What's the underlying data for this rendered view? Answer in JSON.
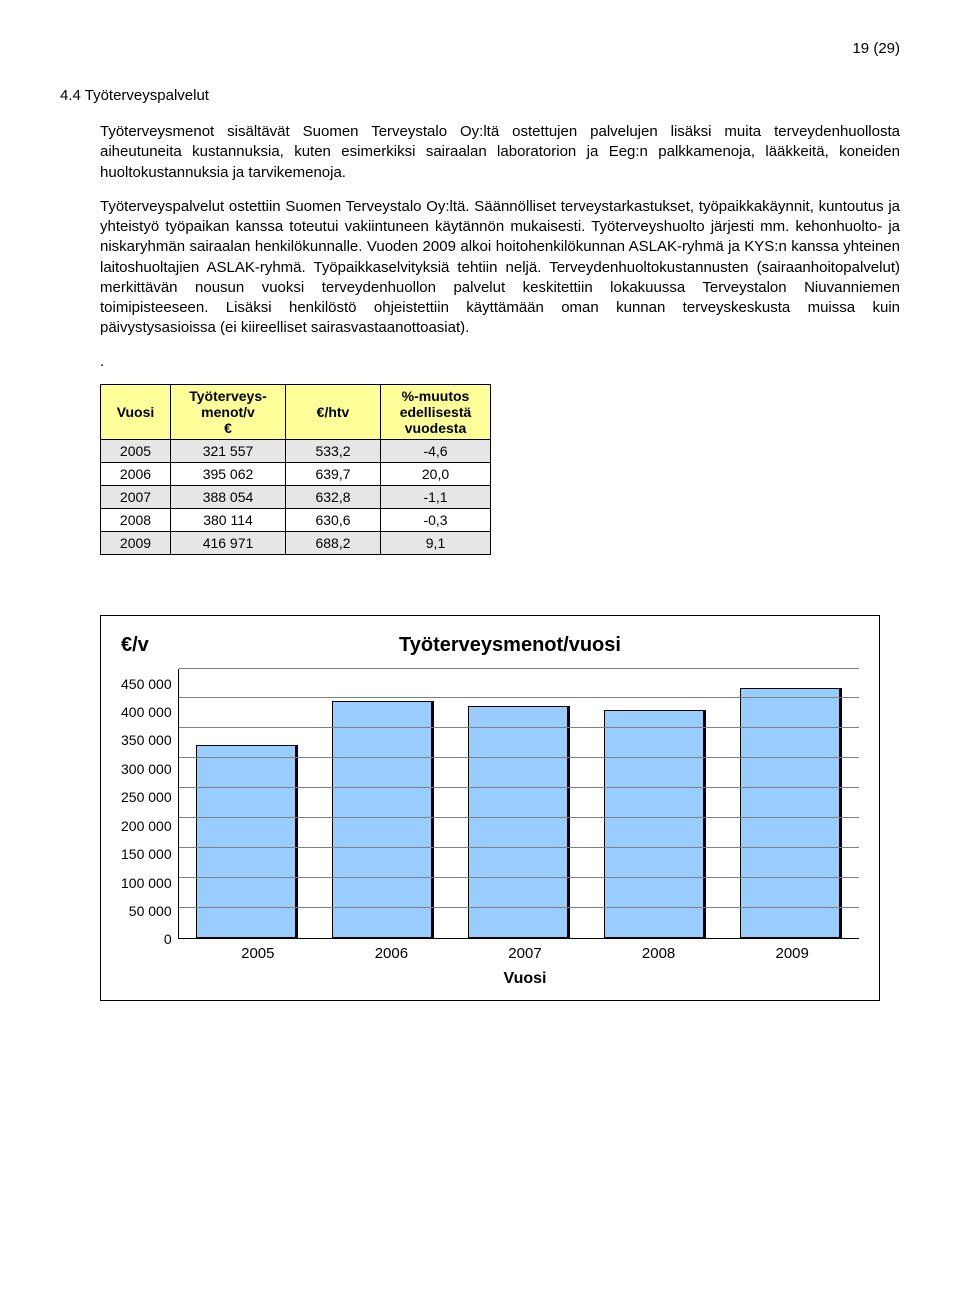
{
  "page_number": "19 (29)",
  "section_title": "4.4 Työterveyspalvelut",
  "paragraphs": [
    "Työterveysmenot sisältävät Suomen Terveystalo Oy:ltä ostettujen palvelujen lisäksi muita terveydenhuollosta aiheutuneita kustannuksia, kuten esimerkiksi sairaalan laboratorion ja Eeg:n palkkamenoja, lääkkeitä, koneiden huoltokustannuksia ja tarvikemenoja.",
    "Työterveyspalvelut ostettiin Suomen Terveystalo Oy:ltä. Säännölliset terveystarkastukset, työpaikkakäynnit, kuntoutus ja yhteistyö työpaikan kanssa toteutui vakiintuneen käytännön mukaisesti. Työterveyshuolto järjesti mm. kehonhuolto- ja niskaryhmän sairaalan henkilökunnalle. Vuoden 2009 alkoi hoitohenkilökunnan ASLAK-ryhmä ja KYS:n kanssa yhteinen laitoshuoltajien ASLAK-ryhmä. Työpaikkaselvityksiä tehtiin neljä. Terveydenhuoltokustannusten (sairaanhoitopalvelut) merkittävän nousun vuoksi terveydenhuollon palvelut keskitettiin lokakuussa Terveystalon Niuvanniemen toimipisteeseen. Lisäksi henkilöstö ohjeistettiin käyttämään oman kunnan terveyskeskusta muissa kuin päivystysasioissa (ei kiireelliset sairasvastaanottoasiat)."
  ],
  "table": {
    "headers": [
      "Vuosi",
      "Työterveys-\nmenot/v\n€",
      "€/htv",
      "%-muutos\nedellisestä\nvuodesta"
    ],
    "header_bg": "#ffff99",
    "alt_bg": "#e6e6e6",
    "rows": [
      [
        "2005",
        "321 557",
        "533,2",
        "-4,6"
      ],
      [
        "2006",
        "395 062",
        "639,7",
        "20,0"
      ],
      [
        "2007",
        "388 054",
        "632,8",
        "-1,1"
      ],
      [
        "2008",
        "380 114",
        "630,6",
        "-0,3"
      ],
      [
        "2009",
        "416 971",
        "688,2",
        "9,1"
      ]
    ]
  },
  "chart": {
    "type": "bar",
    "title": "Työterveysmenot/vuosi",
    "y_unit": "€/v",
    "x_title": "Vuosi",
    "categories": [
      "2005",
      "2006",
      "2007",
      "2008",
      "2009"
    ],
    "values": [
      321557,
      395062,
      388054,
      380114,
      416971
    ],
    "bar_color": "#99ccff",
    "bar_border": "#000000",
    "grid_color": "#7f7f7f",
    "background": "#ffffff",
    "ylim": [
      0,
      450000
    ],
    "ytick_step": 50000,
    "yticks": [
      "450 000",
      "400 000",
      "350 000",
      "300 000",
      "250 000",
      "200 000",
      "150 000",
      "100 000",
      "50 000",
      "0"
    ]
  }
}
